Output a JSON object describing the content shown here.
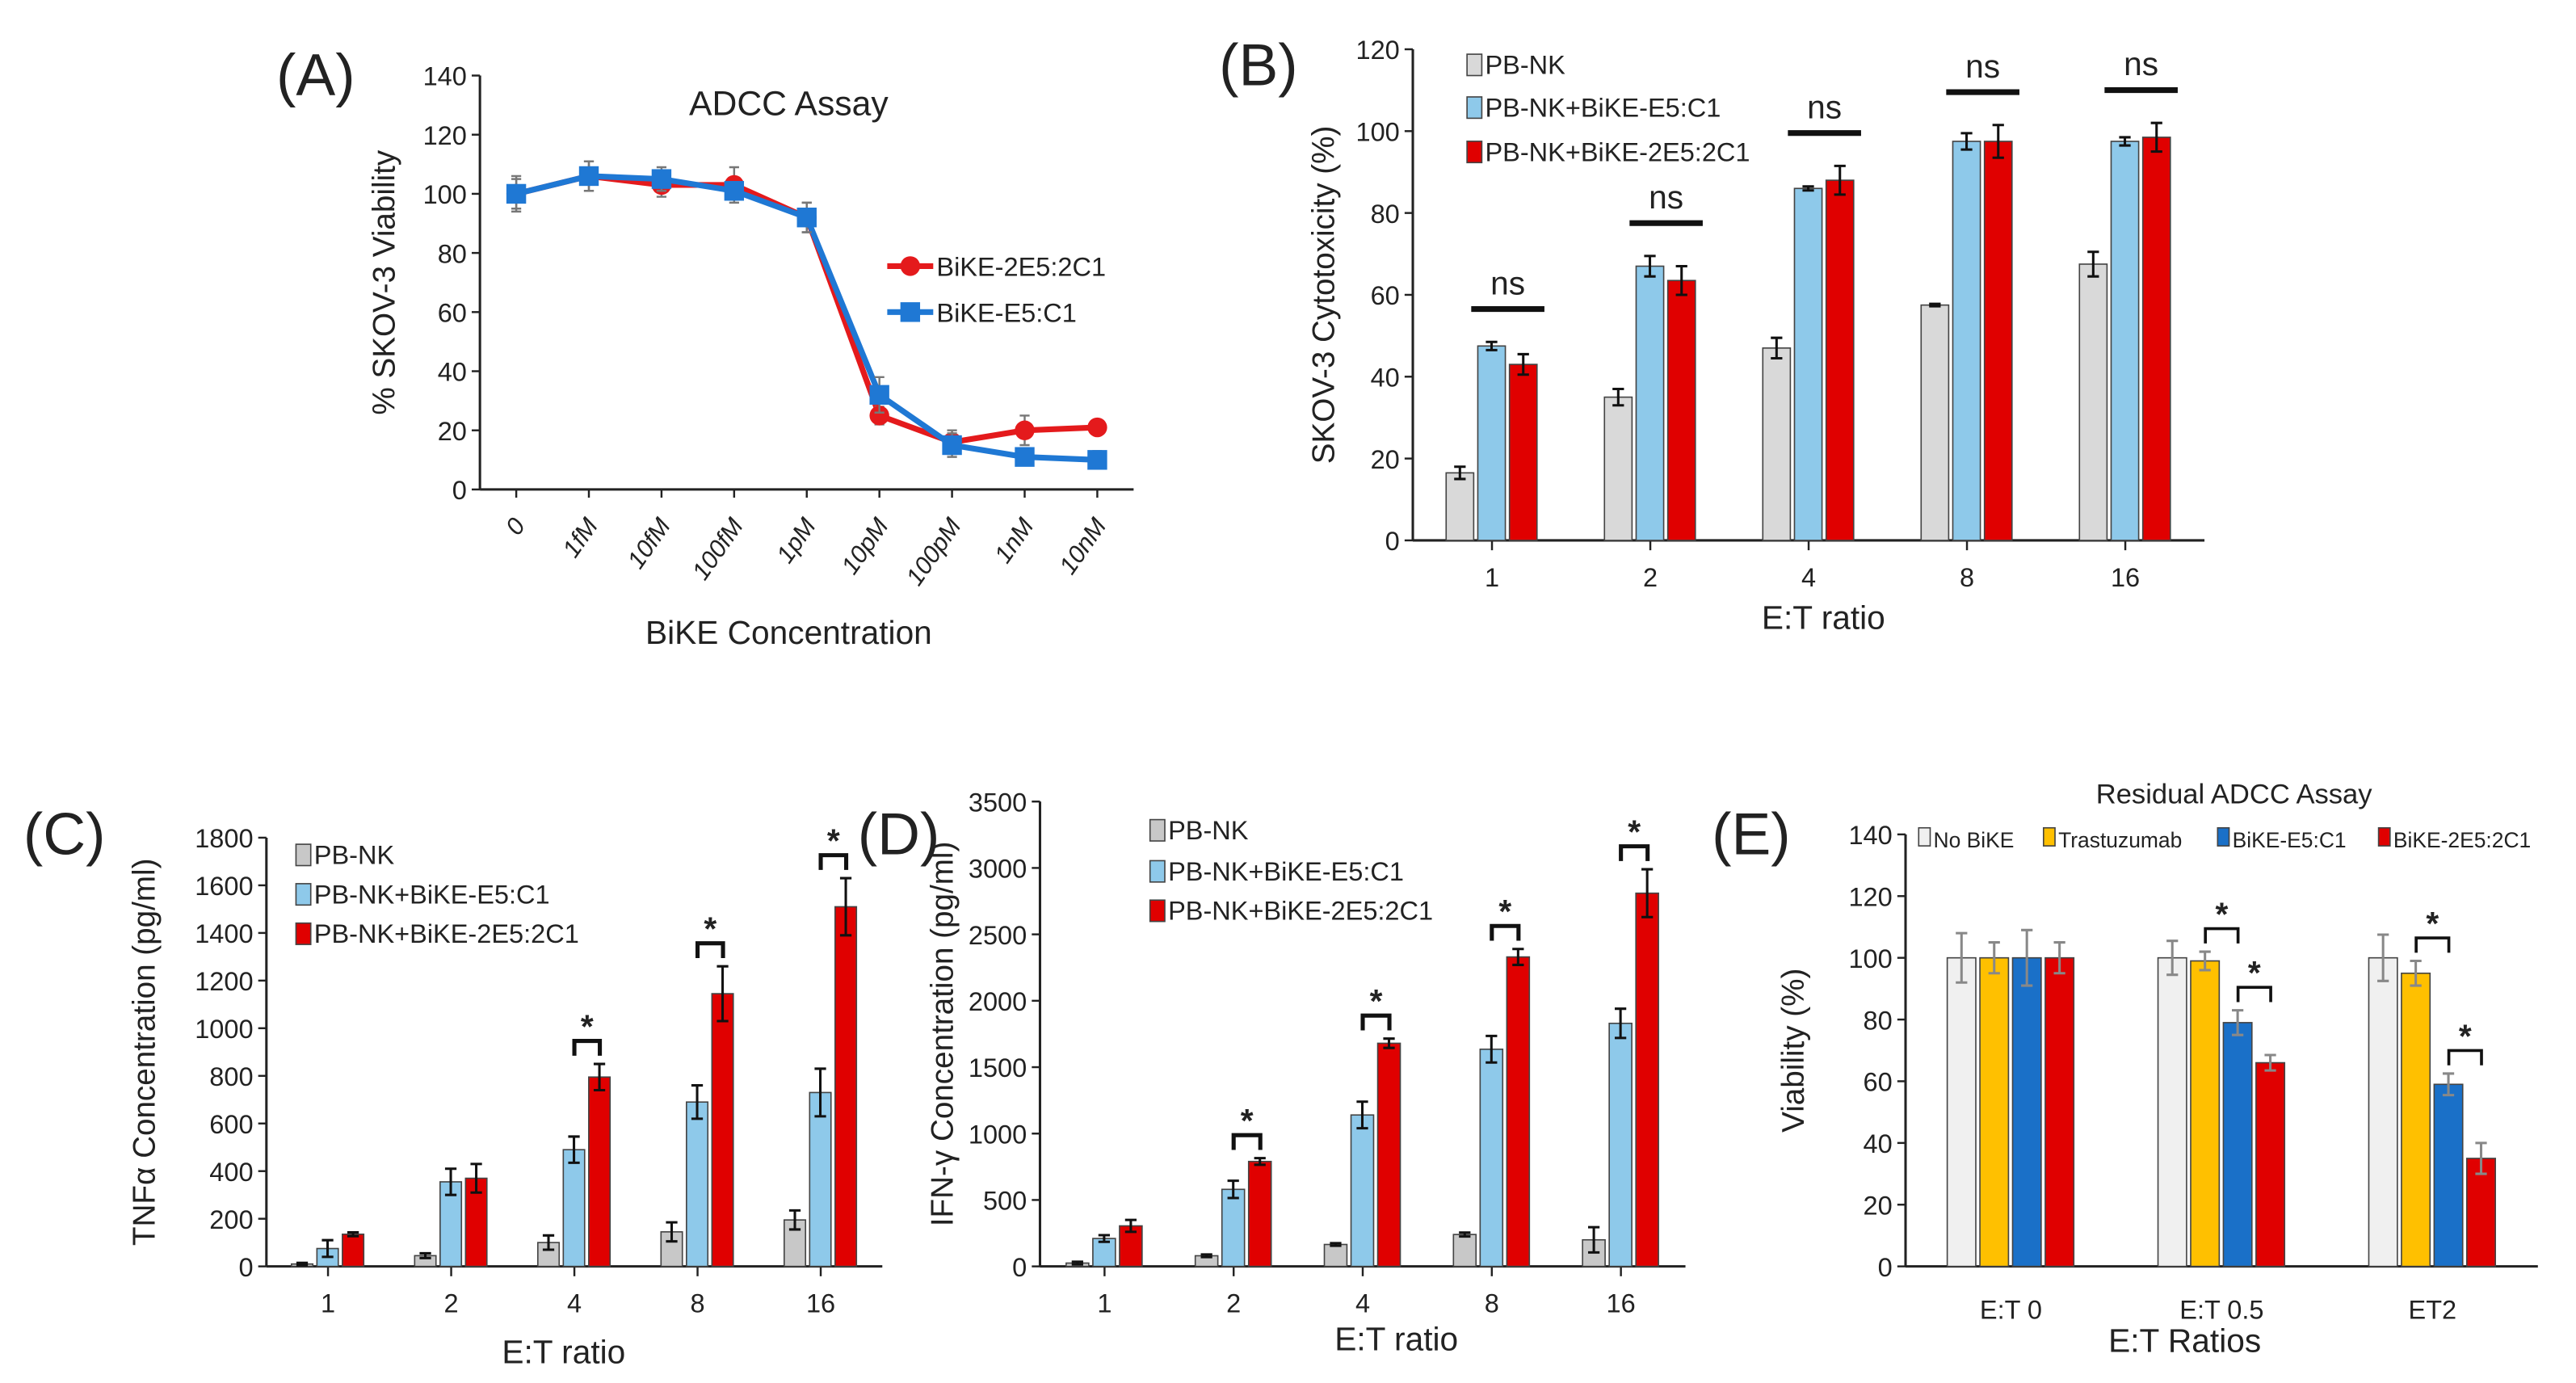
{
  "chart_data": [
    {
      "panel_label": "(A)",
      "type": "line",
      "title": "ADCC Assay",
      "xlabel": "BiKE Concentration",
      "ylabel": "% SKOV-3 Viability",
      "ylim": [
        0,
        140
      ],
      "yticks": [
        "0",
        "20",
        "40",
        "60",
        "80",
        "100",
        "120",
        "140"
      ],
      "categories": [
        "0",
        "1fM",
        "10fM",
        "100fM",
        "1pM",
        "10pM",
        "100pM",
        "1nM",
        "10nM"
      ],
      "legend": "right",
      "series": [
        {
          "name": "BiKE-2E5:2C1",
          "color": "#e41a1c",
          "marker": "circle",
          "values": [
            100,
            106,
            103,
            103,
            92,
            25,
            16,
            20,
            21
          ],
          "errors": [
            5,
            5,
            4,
            6,
            5,
            3,
            4,
            5,
            2
          ]
        },
        {
          "name": "BiKE-E5:C1",
          "color": "#1f78d4",
          "marker": "square",
          "values": [
            100,
            106,
            105,
            101,
            92,
            32,
            15,
            11,
            10
          ],
          "errors": [
            6,
            5,
            4,
            3,
            5,
            6,
            4,
            2,
            3
          ]
        }
      ]
    },
    {
      "panel_label": "(B)",
      "type": "bar",
      "xlabel": "E:T ratio",
      "ylabel": "SKOV-3 Cytotoxicity (%)",
      "ylim": [
        0,
        120
      ],
      "yticks": [
        "0",
        "20",
        "40",
        "60",
        "80",
        "100",
        "120"
      ],
      "categories": [
        "1",
        "2",
        "4",
        "8",
        "16"
      ],
      "legend": "top-left",
      "series": [
        {
          "name": "PB-NK",
          "color": "#d9d9d9",
          "values": [
            16.5,
            35,
            47,
            57.5,
            67.5
          ],
          "errors": [
            1.5,
            2,
            2.5,
            0.3,
            3
          ]
        },
        {
          "name": "PB-NK+BiKE-E5:C1",
          "color": "#8ec9ea",
          "values": [
            47.5,
            67,
            86,
            97.5,
            97.5
          ],
          "errors": [
            1,
            2.5,
            0.5,
            2,
            1
          ]
        },
        {
          "name": "PB-NK+BiKE-2E5:2C1",
          "color": "#e00000",
          "values": [
            43,
            63.5,
            88,
            97.5,
            98.5
          ],
          "errors": [
            2.5,
            3.5,
            3.5,
            4,
            3.5
          ]
        }
      ],
      "annotations": [
        {
          "category": 0,
          "between": [
            1,
            2
          ],
          "label": "ns",
          "style": "line"
        },
        {
          "category": 1,
          "between": [
            1,
            2
          ],
          "label": "ns",
          "style": "line"
        },
        {
          "category": 2,
          "between": [
            1,
            2
          ],
          "label": "ns",
          "style": "line"
        },
        {
          "category": 3,
          "between": [
            1,
            2
          ],
          "label": "ns",
          "style": "line"
        },
        {
          "category": 4,
          "between": [
            1,
            2
          ],
          "label": "ns",
          "style": "line"
        }
      ]
    },
    {
      "panel_label": "(C)",
      "type": "bar",
      "xlabel": "E:T ratio",
      "ylabel": "TNFα Concentration (pg/ml)",
      "ylim": [
        0,
        1800
      ],
      "yticks": [
        "0",
        "200",
        "400",
        "600",
        "800",
        "1000",
        "1200",
        "1400",
        "1600",
        "1800"
      ],
      "categories": [
        "1",
        "2",
        "4",
        "8",
        "16"
      ],
      "legend": "top-left",
      "series": [
        {
          "name": "PB-NK",
          "color": "#c8c8c8",
          "values": [
            10,
            45,
            100,
            145,
            195
          ],
          "errors": [
            5,
            10,
            30,
            40,
            40
          ]
        },
        {
          "name": "PB-NK+BiKE-E5:C1",
          "color": "#8ec9ea",
          "values": [
            75,
            355,
            490,
            690,
            730
          ],
          "errors": [
            35,
            55,
            55,
            70,
            100
          ]
        },
        {
          "name": "PB-NK+BiKE-2E5:2C1",
          "color": "#e00000",
          "values": [
            135,
            370,
            795,
            1145,
            1510
          ],
          "errors": [
            8,
            60,
            55,
            115,
            120
          ]
        }
      ],
      "annotations": [
        {
          "category": 2,
          "between": [
            1,
            2
          ],
          "label": "*",
          "style": "bracket"
        },
        {
          "category": 3,
          "between": [
            1,
            2
          ],
          "label": "*",
          "style": "bracket"
        },
        {
          "category": 4,
          "between": [
            1,
            2
          ],
          "label": "*",
          "style": "bracket"
        }
      ]
    },
    {
      "panel_label": "(D)",
      "type": "bar",
      "xlabel": "E:T ratio",
      "ylabel": "IFN-γ Concentration (pg/ml)",
      "ylim": [
        0,
        3500
      ],
      "yticks": [
        "0",
        "500",
        "1000",
        "1500",
        "2000",
        "2500",
        "3000",
        "3500"
      ],
      "categories": [
        "1",
        "2",
        "4",
        "8",
        "16"
      ],
      "legend": "top-left",
      "series": [
        {
          "name": "PB-NK",
          "color": "#c8c8c8",
          "values": [
            25,
            80,
            165,
            240,
            200
          ],
          "errors": [
            10,
            10,
            10,
            15,
            95
          ]
        },
        {
          "name": "PB-NK+BiKE-E5:C1",
          "color": "#8ec9ea",
          "values": [
            210,
            580,
            1140,
            1635,
            1830
          ],
          "errors": [
            25,
            65,
            100,
            100,
            110
          ]
        },
        {
          "name": "PB-NK+BiKE-2E5:2C1",
          "color": "#e00000",
          "values": [
            305,
            790,
            1680,
            2330,
            2810
          ],
          "errors": [
            45,
            25,
            35,
            60,
            180
          ]
        }
      ],
      "annotations": [
        {
          "category": 1,
          "between": [
            1,
            2
          ],
          "label": "*",
          "style": "bracket"
        },
        {
          "category": 2,
          "between": [
            1,
            2
          ],
          "label": "*",
          "style": "bracket"
        },
        {
          "category": 3,
          "between": [
            1,
            2
          ],
          "label": "*",
          "style": "bracket"
        },
        {
          "category": 4,
          "between": [
            1,
            2
          ],
          "label": "*",
          "style": "bracket"
        }
      ]
    },
    {
      "panel_label": "(E)",
      "type": "bar",
      "title": "Residual ADCC Assay",
      "xlabel": "E:T Ratios",
      "ylabel": "Viability (%)",
      "ylim": [
        0,
        140
      ],
      "yticks": [
        "0",
        "20",
        "40",
        "60",
        "80",
        "100",
        "120",
        "140"
      ],
      "categories": [
        "E:T 0",
        "E:T 0.5",
        "ET2"
      ],
      "legend": "top",
      "series": [
        {
          "name": "No BiKE",
          "color": "#f0f0f0",
          "values": [
            100,
            100,
            100
          ],
          "errors": [
            8,
            5.5,
            7.5
          ]
        },
        {
          "name": "Trastuzumab",
          "color": "#ffc000",
          "values": [
            100,
            99,
            95
          ],
          "errors": [
            5,
            3,
            4
          ]
        },
        {
          "name": "BiKE-E5:C1",
          "color": "#1a70c8",
          "values": [
            100,
            79,
            59
          ],
          "errors": [
            9,
            4,
            3.5
          ]
        },
        {
          "name": "BiKE-2E5:2C1",
          "color": "#e00000",
          "values": [
            100,
            66,
            35
          ],
          "errors": [
            5,
            2.5,
            5
          ]
        }
      ],
      "annotations": [
        {
          "category": 1,
          "between": [
            1,
            2
          ],
          "label": "*",
          "style": "bracket"
        },
        {
          "category": 1,
          "between": [
            2,
            3
          ],
          "label": "*",
          "style": "bracket"
        },
        {
          "category": 2,
          "between": [
            1,
            2
          ],
          "label": "*",
          "style": "bracket"
        },
        {
          "category": 2,
          "between": [
            2,
            3
          ],
          "label": "*",
          "style": "bracket"
        }
      ]
    }
  ]
}
